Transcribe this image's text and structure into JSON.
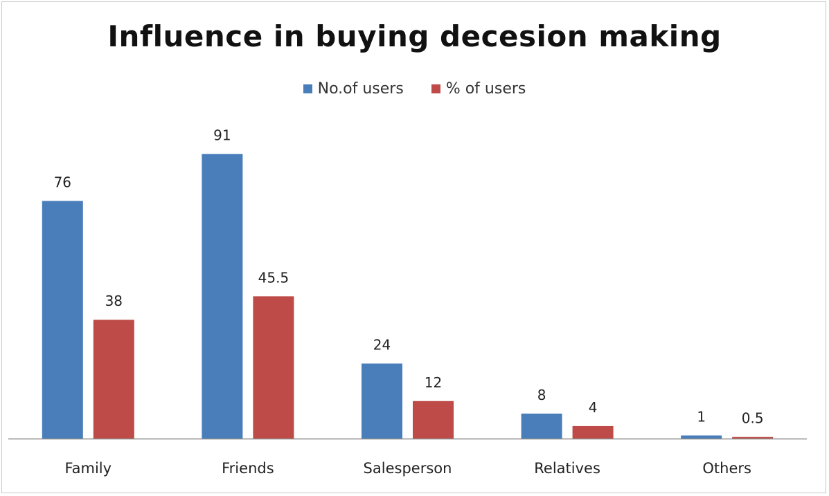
{
  "chart_data": {
    "type": "bar",
    "title": "Influence in buying decesion making",
    "categories": [
      "Family",
      "Friends",
      "Salesperson",
      "Relatives",
      "Others"
    ],
    "series": [
      {
        "name": "No.of users",
        "values": [
          76,
          91,
          24,
          8,
          1
        ],
        "labels": [
          "76",
          "91",
          "24",
          "8",
          "1"
        ],
        "color": "#4a7ebb"
      },
      {
        "name": "% of users",
        "values": [
          38,
          45.5,
          12,
          4,
          0.5
        ],
        "labels": [
          "38",
          "45.5",
          "12",
          "4",
          "0.5"
        ],
        "color": "#be4b48"
      }
    ],
    "xlabel": "",
    "ylabel": "",
    "ylim": [
      0,
      91
    ],
    "grid": false,
    "legend_position": "top",
    "data_labels": true
  }
}
